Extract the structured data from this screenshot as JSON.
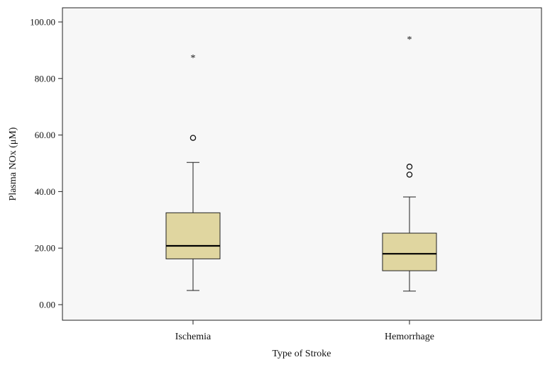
{
  "chart_data": {
    "type": "box",
    "title": "",
    "xlabel": "Type of Stroke",
    "ylabel": "Plasma NOx (μM)",
    "ylim": [
      -5,
      105
    ],
    "yticks": [
      "0.00",
      "20.00",
      "40.00",
      "60.00",
      "80.00",
      "100.00"
    ],
    "ytick_values": [
      0,
      20,
      40,
      60,
      80,
      100
    ],
    "grid": false,
    "colors": {
      "plot_background": "#f7f7f7",
      "box_fill": "#e0d6a0",
      "box_stroke": "#222222"
    },
    "categories": [
      "Ischemia",
      "Hemorrhage"
    ],
    "boxes": [
      {
        "category": "Ischemia",
        "whisker_low": 5.0,
        "q1": 16.2,
        "median": 20.8,
        "q3": 32.5,
        "whisker_high": 50.3,
        "outliers": [
          59.0
        ],
        "extremes": [
          88.0
        ],
        "extreme_marker": "*"
      },
      {
        "category": "Hemorrhage",
        "whisker_low": 4.8,
        "q1": 12.0,
        "median": 18.0,
        "q3": 25.3,
        "whisker_high": 38.1,
        "outliers": [
          46.0,
          48.8
        ],
        "extremes": [
          94.5
        ],
        "extreme_marker": "*"
      }
    ]
  }
}
